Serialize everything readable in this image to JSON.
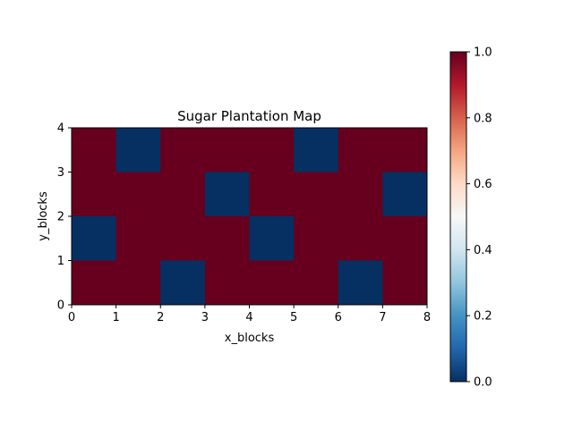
{
  "chart_data": {
    "type": "heatmap",
    "title": "Sugar Plantation Map",
    "xlabel": "x_blocks",
    "ylabel": "y_blocks",
    "xlim": [
      0,
      8
    ],
    "ylim": [
      0,
      4
    ],
    "xticks": [
      "0",
      "1",
      "2",
      "3",
      "4",
      "5",
      "6",
      "7",
      "8"
    ],
    "yticks": [
      "0",
      "1",
      "2",
      "3",
      "4"
    ],
    "grid": false,
    "colormap": "RdBu_r",
    "color_range": [
      0.0,
      1.0
    ],
    "colorbar_ticks": [
      "0.0",
      "0.2",
      "0.4",
      "0.6",
      "0.8",
      "1.0"
    ],
    "colors": {
      "low": "#053061",
      "high": "#67001f"
    },
    "rows_top_to_bottom": [
      [
        1,
        0,
        1,
        1,
        1,
        0,
        1,
        1
      ],
      [
        1,
        1,
        1,
        0,
        1,
        1,
        1,
        0
      ],
      [
        0,
        1,
        1,
        1,
        0,
        1,
        1,
        1
      ],
      [
        1,
        1,
        0,
        1,
        1,
        1,
        0,
        1
      ]
    ]
  }
}
